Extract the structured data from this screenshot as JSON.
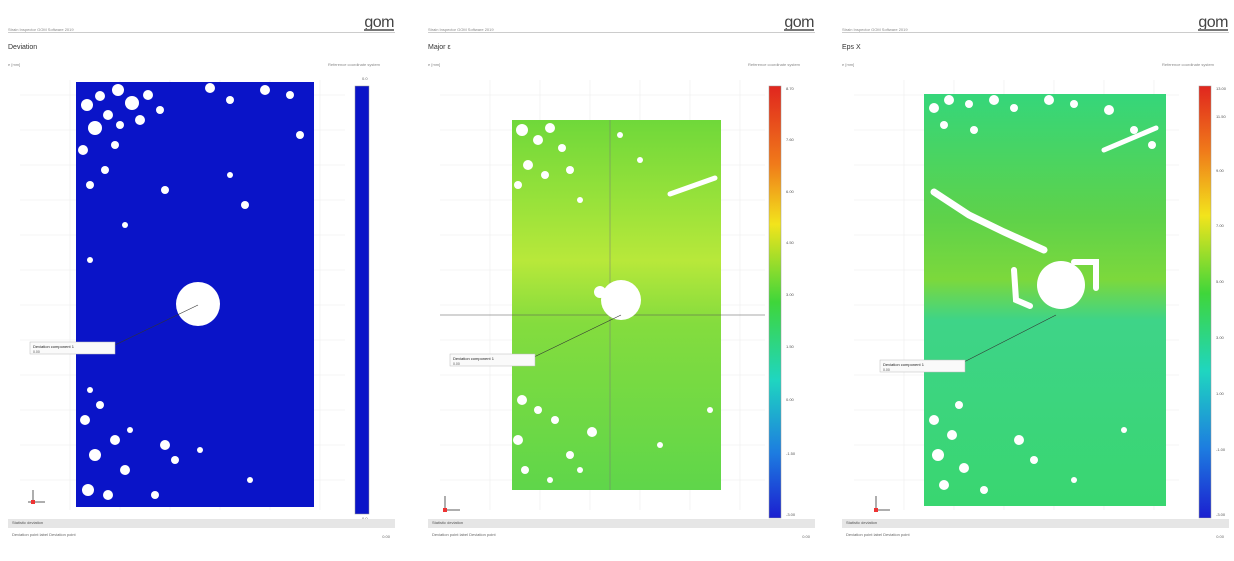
{
  "panels": [
    {
      "header": "Strain Inspector GOM Software 2019",
      "title": "Deviation",
      "unit_left": "e [mm]",
      "unit_right": "Reference coordinate system",
      "logo": "gom",
      "footer_label": "Statistic deviation",
      "footer_line": "Deviation point label   Deviation point",
      "footer_value": "0.00",
      "point_label": "Deviation component 1",
      "point_sub": "0.00",
      "colorbar_top": "0.0",
      "colorbar_mid": "",
      "colorbar_bottom": "0.0"
    },
    {
      "header": "Strain Inspector GOM Software 2019",
      "title": "Major ε",
      "unit_left": "e [mm]",
      "unit_right": "Reference coordinate system",
      "logo": "gom",
      "footer_label": "Statistic deviation",
      "footer_line": "Deviation point label   Deviation point",
      "footer_value": "0.00",
      "point_label": "Deviation component 1",
      "point_sub": "0.00",
      "colorbar_ticks": [
        "8.70",
        "7.60",
        "6.00",
        "4.50",
        "3.00",
        "1.50",
        "0.00",
        "-1.50",
        "-3.00"
      ]
    },
    {
      "header": "Strain Inspector GOM Software 2019",
      "title": "Eps X",
      "unit_left": "e [mm]",
      "unit_right": "Reference coordinate system",
      "logo": "gom",
      "footer_label": "Statistic deviation",
      "footer_line": "Deviation point label   Deviation point",
      "footer_value": "0.00",
      "point_label": "Deviation component 1",
      "point_sub": "0.00",
      "colorbar_ticks": [
        "13.00",
        "11.50",
        "9.00",
        "7.00",
        "5.00",
        "3.00",
        "1.00",
        "-1.00",
        "-3.00"
      ]
    }
  ],
  "colors": {
    "deviation_fill": "#0a14c8",
    "major_fill": "#6fd83a",
    "epsx_fill": "#35d67a",
    "hole": "#ffffff"
  }
}
